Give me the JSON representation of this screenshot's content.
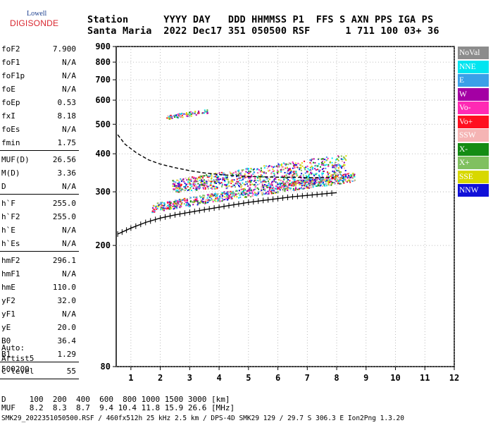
{
  "logo": {
    "brand": "Lowell",
    "name": "DIGISONDE"
  },
  "header": {
    "line1": "Station      YYYY DAY   DDD HHMMSS P1  FFS S AXN PPS IGA PS",
    "line2": "Santa Maria  2022 Dec17 351 050500 RSF      1 711 100 03+ 36"
  },
  "params": [
    [
      {
        "label": "foF2",
        "value": "7.900"
      },
      {
        "label": "foF1",
        "value": "N/A"
      },
      {
        "label": "foF1p",
        "value": "N/A"
      },
      {
        "label": "foE",
        "value": "N/A"
      },
      {
        "label": "foEp",
        "value": "0.53"
      },
      {
        "label": "fxI",
        "value": "8.18"
      },
      {
        "label": "foEs",
        "value": "N/A"
      },
      {
        "label": "fmin",
        "value": "1.75"
      }
    ],
    [
      {
        "label": "MUF(D)",
        "value": "26.56"
      },
      {
        "label": "M(D)",
        "value": "3.36"
      },
      {
        "label": "D",
        "value": "N/A"
      }
    ],
    [
      {
        "label": "h`F",
        "value": "255.0"
      },
      {
        "label": "h`F2",
        "value": "255.0"
      },
      {
        "label": "h`E",
        "value": "N/A"
      },
      {
        "label": "h`Es",
        "value": "N/A"
      }
    ],
    [
      {
        "label": "hmF2",
        "value": "296.1"
      },
      {
        "label": "hmF1",
        "value": "N/A"
      },
      {
        "label": "hmE",
        "value": "110.0"
      },
      {
        "label": "yF2",
        "value": "32.0"
      },
      {
        "label": "yF1",
        "value": "N/A"
      },
      {
        "label": "yE",
        "value": "20.0"
      },
      {
        "label": "B0",
        "value": "36.4"
      },
      {
        "label": "B1",
        "value": "1.29"
      }
    ],
    [
      {
        "label": "C-level",
        "value": "55"
      }
    ]
  ],
  "auto": {
    "line1": "Auto:",
    "line2": "Artist5",
    "line3": "500200"
  },
  "legend": [
    {
      "label": "NoVal",
      "color": "#8c8c8c"
    },
    {
      "label": "NNE",
      "color": "#00e5f0"
    },
    {
      "label": "E",
      "color": "#3aa0e8"
    },
    {
      "label": "W",
      "color": "#a400a4"
    },
    {
      "label": "Vo-",
      "color": "#ff2ab4"
    },
    {
      "label": "Vo+",
      "color": "#ff1020"
    },
    {
      "label": "SSW",
      "color": "#f5b4b4"
    },
    {
      "label": "X-",
      "color": "#148c14"
    },
    {
      "label": "X+",
      "color": "#80c060"
    },
    {
      "label": "SSE",
      "color": "#d8d800"
    },
    {
      "label": "NNW",
      "color": "#1010d8"
    }
  ],
  "bottom": {
    "d_row": "D     100  200  400  600  800 1000 1500 3000 [km]",
    "muf_row": "MUF   8.2  8.3  8.7  9.4 10.4 11.8 15.9 26.6 [MHz]",
    "footer": "SMK29_2022351050500.RSF / 460fx512h 25 kHz 2.5 km / DPS-4D SMK29 129 / 29.7 S 306.3 E Ion2Png 1.3.20"
  },
  "chart_data": {
    "type": "scatter",
    "title": "",
    "xlabel": "",
    "ylabel": "",
    "xlim": [
      0.5,
      12
    ],
    "ylim": [
      80,
      900
    ],
    "x_ticks": [
      1,
      2,
      3,
      4,
      5,
      6,
      7,
      8,
      9,
      10,
      11,
      12
    ],
    "y_ticks": [
      80,
      200,
      300,
      400,
      500,
      600,
      700,
      800,
      900
    ],
    "y_scale": "log",
    "grid": "dotted",
    "series": [
      {
        "name": "",
        "kind": "profile-dashed",
        "x": [
          0.55,
          0.8,
          1.2,
          1.6,
          2.0,
          2.5,
          3.0,
          3.5,
          4.0,
          4.5,
          5.0,
          5.5,
          6.0,
          6.5,
          7.0,
          7.5,
          7.9
        ],
        "y": [
          462,
          430,
          402,
          382,
          370,
          360,
          352,
          346,
          342,
          339,
          337,
          336,
          335,
          335,
          334,
          334,
          334
        ]
      },
      {
        "name": "",
        "kind": "trace-ticked",
        "x": [
          0.55,
          1.0,
          1.5,
          2.0,
          2.5,
          3.0,
          3.5,
          4.0,
          4.5,
          5.0,
          5.5,
          6.0,
          6.5,
          7.0,
          7.5,
          8.0
        ],
        "y": [
          218,
          228,
          238,
          246,
          252,
          257,
          262,
          267,
          272,
          277,
          281,
          285,
          289,
          292,
          295,
          298
        ]
      }
    ],
    "echo_bands": [
      {
        "x": [
          1.7,
          8.6
        ],
        "y_low": [
          258,
          325
        ],
        "y_high": [
          275,
          350
        ]
      },
      {
        "x": [
          2.4,
          8.3
        ],
        "y_low": [
          300,
          330
        ],
        "y_high": [
          330,
          400
        ]
      },
      {
        "x": [
          2.2,
          3.6
        ],
        "y_low": [
          520,
          545
        ],
        "y_high": [
          535,
          565
        ]
      }
    ]
  }
}
